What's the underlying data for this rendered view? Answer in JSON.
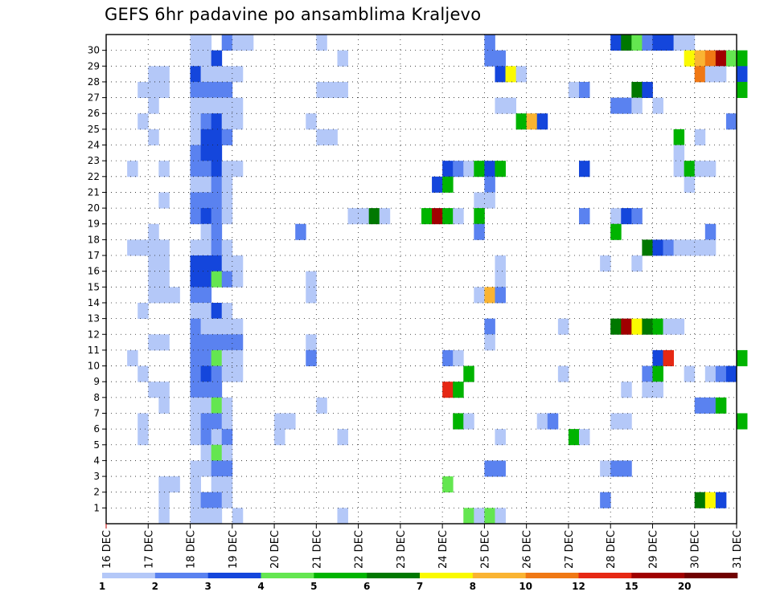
{
  "chart_data": {
    "type": "heatmap",
    "title": "GEFS 6hr padavine po ansamblima Kraljevo",
    "y_ticks": [
      "1",
      "2",
      "3",
      "4",
      "5",
      "6",
      "7",
      "8",
      "9",
      "10",
      "11",
      "12",
      "13",
      "14",
      "15",
      "16",
      "17",
      "18",
      "19",
      "20",
      "21",
      "22",
      "23",
      "24",
      "25",
      "26",
      "27",
      "28",
      "29",
      "30"
    ],
    "x_ticks": [
      "16 DEC",
      "17 DEC",
      "18 DEC",
      "19 DEC",
      "20 DEC",
      "21 DEC",
      "22 DEC",
      "23 DEC",
      "24 DEC",
      "25 DEC",
      "26 DEC",
      "27 DEC",
      "28 DEC",
      "29 DEC",
      "30 DEC",
      "31 DEC"
    ],
    "grid": true,
    "legend": {
      "placement": "bottom",
      "labels": [
        "1",
        "2",
        "3",
        "4",
        "5",
        "6",
        "7",
        "8",
        "10",
        "12",
        "15",
        "20"
      ],
      "colors": [
        "#b4c8f8",
        "#5a82f0",
        "#1446dc",
        "#64e650",
        "#00b400",
        "#007800",
        "#fafa00",
        "#fab432",
        "#f07814",
        "#e62814",
        "#a00000",
        "#700000"
      ]
    },
    "cells": [
      [
        30,
        "18 00",
        1
      ],
      [
        30,
        "18 06",
        1
      ],
      [
        30,
        "18 18",
        2
      ],
      [
        30,
        "19 00",
        1
      ],
      [
        30,
        "19 06",
        1
      ],
      [
        30,
        "21 00",
        1
      ],
      [
        30,
        "25 00",
        2
      ],
      [
        30,
        "28 00",
        3
      ],
      [
        30,
        "28 06",
        6
      ],
      [
        30,
        "28 12",
        4
      ],
      [
        30,
        "28 18",
        2
      ],
      [
        30,
        "29 00",
        3
      ],
      [
        30,
        "29 06",
        3
      ],
      [
        30,
        "29 12",
        1
      ],
      [
        30,
        "29 18",
        1
      ],
      [
        29,
        "18 00",
        1
      ],
      [
        29,
        "18 06",
        1
      ],
      [
        29,
        "18 12",
        3
      ],
      [
        29,
        "21 12",
        1
      ],
      [
        29,
        "25 00",
        2
      ],
      [
        29,
        "25 06",
        2
      ],
      [
        29,
        "29 18",
        7
      ],
      [
        29,
        "30 00",
        8
      ],
      [
        29,
        "30 06",
        10
      ],
      [
        29,
        "30 12",
        15
      ],
      [
        29,
        "30 18",
        4
      ],
      [
        29,
        "31 00",
        5
      ],
      [
        28,
        "17 00",
        1
      ],
      [
        28,
        "17 06",
        1
      ],
      [
        28,
        "18 00",
        3
      ],
      [
        28,
        "18 06",
        1
      ],
      [
        28,
        "18 12",
        1
      ],
      [
        28,
        "18 18",
        1
      ],
      [
        28,
        "19 00",
        1
      ],
      [
        28,
        "25 06",
        3
      ],
      [
        28,
        "25 12",
        7
      ],
      [
        28,
        "25 18",
        1
      ],
      [
        28,
        "30 00",
        10
      ],
      [
        28,
        "30 06",
        1
      ],
      [
        28,
        "30 12",
        1
      ],
      [
        28,
        "31 00",
        3
      ],
      [
        27,
        "16 18",
        1
      ],
      [
        27,
        "17 00",
        1
      ],
      [
        27,
        "17 06",
        1
      ],
      [
        27,
        "18 00",
        2
      ],
      [
        27,
        "18 06",
        2
      ],
      [
        27,
        "18 12",
        2
      ],
      [
        27,
        "18 18",
        2
      ],
      [
        27,
        "21 00",
        1
      ],
      [
        27,
        "21 06",
        1
      ],
      [
        27,
        "21 12",
        1
      ],
      [
        27,
        "27 00",
        1
      ],
      [
        27,
        "27 06",
        2
      ],
      [
        27,
        "28 12",
        6
      ],
      [
        27,
        "28 18",
        3
      ],
      [
        27,
        "31 00",
        5
      ],
      [
        26,
        "17 00",
        1
      ],
      [
        26,
        "18 00",
        1
      ],
      [
        26,
        "18 06",
        1
      ],
      [
        26,
        "18 12",
        1
      ],
      [
        26,
        "18 18",
        1
      ],
      [
        26,
        "19 00",
        1
      ],
      [
        26,
        "25 06",
        1
      ],
      [
        26,
        "25 12",
        1
      ],
      [
        26,
        "28 00",
        2
      ],
      [
        26,
        "28 06",
        2
      ],
      [
        26,
        "28 12",
        1
      ],
      [
        26,
        "29 00",
        1
      ],
      [
        25,
        "16 18",
        1
      ],
      [
        25,
        "18 00",
        1
      ],
      [
        25,
        "18 06",
        2
      ],
      [
        25,
        "18 12",
        3
      ],
      [
        25,
        "18 18",
        1
      ],
      [
        25,
        "19 00",
        1
      ],
      [
        25,
        "20 18",
        1
      ],
      [
        25,
        "25 18",
        5
      ],
      [
        25,
        "26 00",
        8
      ],
      [
        25,
        "26 06",
        3
      ],
      [
        25,
        "30 18",
        2
      ],
      [
        24,
        "17 00",
        1
      ],
      [
        24,
        "18 00",
        1
      ],
      [
        24,
        "18 06",
        3
      ],
      [
        24,
        "18 12",
        3
      ],
      [
        24,
        "18 18",
        2
      ],
      [
        24,
        "21 00",
        1
      ],
      [
        24,
        "21 06",
        1
      ],
      [
        24,
        "29 12",
        5
      ],
      [
        24,
        "30 00",
        1
      ],
      [
        23,
        "18 00",
        2
      ],
      [
        23,
        "18 06",
        3
      ],
      [
        23,
        "18 12",
        3
      ],
      [
        23,
        "29 12",
        1
      ],
      [
        22,
        "16 12",
        1
      ],
      [
        22,
        "17 06",
        1
      ],
      [
        22,
        "18 00",
        2
      ],
      [
        22,
        "18 06",
        2
      ],
      [
        22,
        "18 12",
        3
      ],
      [
        22,
        "18 18",
        1
      ],
      [
        22,
        "19 00",
        1
      ],
      [
        22,
        "24 00",
        3
      ],
      [
        22,
        "24 06",
        2
      ],
      [
        22,
        "24 12",
        1
      ],
      [
        22,
        "24 18",
        5
      ],
      [
        22,
        "25 00",
        3
      ],
      [
        22,
        "25 06",
        5
      ],
      [
        22,
        "27 06",
        3
      ],
      [
        22,
        "29 12",
        1
      ],
      [
        22,
        "29 18",
        5
      ],
      [
        22,
        "30 00",
        1
      ],
      [
        22,
        "30 06",
        1
      ],
      [
        21,
        "18 00",
        1
      ],
      [
        21,
        "18 06",
        1
      ],
      [
        21,
        "18 12",
        2
      ],
      [
        21,
        "18 18",
        1
      ],
      [
        21,
        "23 18",
        3
      ],
      [
        21,
        "24 00",
        5
      ],
      [
        21,
        "25 00",
        2
      ],
      [
        21,
        "29 18",
        1
      ],
      [
        20,
        "17 06",
        1
      ],
      [
        20,
        "18 00",
        2
      ],
      [
        20,
        "18 06",
        2
      ],
      [
        20,
        "18 12",
        2
      ],
      [
        20,
        "18 18",
        1
      ],
      [
        20,
        "24 18",
        1
      ],
      [
        20,
        "25 00",
        1
      ],
      [
        19,
        "18 00",
        2
      ],
      [
        19,
        "18 06",
        3
      ],
      [
        19,
        "18 12",
        2
      ],
      [
        19,
        "18 18",
        1
      ],
      [
        19,
        "21 18",
        1
      ],
      [
        19,
        "22 00",
        1
      ],
      [
        19,
        "22 06",
        6
      ],
      [
        19,
        "22 12",
        1
      ],
      [
        19,
        "23 12",
        5
      ],
      [
        19,
        "23 18",
        15
      ],
      [
        19,
        "24 00",
        5
      ],
      [
        19,
        "24 06",
        1
      ],
      [
        19,
        "24 18",
        5
      ],
      [
        19,
        "27 06",
        2
      ],
      [
        19,
        "28 00",
        1
      ],
      [
        19,
        "28 06",
        3
      ],
      [
        19,
        "28 12",
        2
      ],
      [
        18,
        "17 00",
        1
      ],
      [
        18,
        "18 06",
        1
      ],
      [
        18,
        "18 12",
        2
      ],
      [
        18,
        "20 12",
        2
      ],
      [
        18,
        "24 18",
        2
      ],
      [
        18,
        "28 00",
        5
      ],
      [
        18,
        "30 06",
        2
      ],
      [
        17,
        "16 12",
        1
      ],
      [
        17,
        "16 18",
        1
      ],
      [
        17,
        "17 00",
        1
      ],
      [
        17,
        "17 06",
        1
      ],
      [
        17,
        "18 00",
        1
      ],
      [
        17,
        "18 06",
        1
      ],
      [
        17,
        "18 12",
        2
      ],
      [
        17,
        "18 18",
        1
      ],
      [
        17,
        "28 18",
        6
      ],
      [
        17,
        "29 00",
        3
      ],
      [
        17,
        "29 06",
        2
      ],
      [
        17,
        "29 12",
        1
      ],
      [
        17,
        "29 18",
        1
      ],
      [
        17,
        "30 00",
        1
      ],
      [
        17,
        "30 06",
        1
      ],
      [
        16,
        "17 00",
        1
      ],
      [
        16,
        "17 06",
        1
      ],
      [
        16,
        "18 00",
        3
      ],
      [
        16,
        "18 06",
        3
      ],
      [
        16,
        "18 12",
        3
      ],
      [
        16,
        "18 18",
        1
      ],
      [
        16,
        "19 00",
        1
      ],
      [
        16,
        "25 06",
        1
      ],
      [
        16,
        "27 18",
        1
      ],
      [
        16,
        "28 12",
        1
      ],
      [
        15,
        "17 00",
        1
      ],
      [
        15,
        "17 06",
        1
      ],
      [
        15,
        "18 00",
        3
      ],
      [
        15,
        "18 06",
        3
      ],
      [
        15,
        "18 12",
        4
      ],
      [
        15,
        "18 18",
        2
      ],
      [
        15,
        "19 00",
        1
      ],
      [
        15,
        "20 18",
        1
      ],
      [
        15,
        "25 06",
        1
      ],
      [
        14,
        "17 00",
        1
      ],
      [
        14,
        "17 06",
        1
      ],
      [
        14,
        "17 12",
        1
      ],
      [
        14,
        "18 00",
        2
      ],
      [
        14,
        "18 06",
        2
      ],
      [
        14,
        "20 18",
        1
      ],
      [
        14,
        "24 18",
        1
      ],
      [
        14,
        "25 00",
        8
      ],
      [
        14,
        "25 06",
        2
      ],
      [
        13,
        "16 18",
        1
      ],
      [
        13,
        "18 00",
        1
      ],
      [
        13,
        "18 06",
        1
      ],
      [
        13,
        "18 12",
        3
      ],
      [
        13,
        "18 18",
        1
      ],
      [
        12,
        "18 00",
        2
      ],
      [
        12,
        "18 06",
        1
      ],
      [
        12,
        "18 12",
        1
      ],
      [
        12,
        "18 18",
        1
      ],
      [
        12,
        "19 00",
        1
      ],
      [
        12,
        "25 00",
        2
      ],
      [
        12,
        "26 18",
        1
      ],
      [
        12,
        "28 00",
        6
      ],
      [
        12,
        "28 06",
        15
      ],
      [
        12,
        "28 12",
        7
      ],
      [
        12,
        "28 18",
        6
      ],
      [
        12,
        "29 00",
        5
      ],
      [
        12,
        "29 06",
        1
      ],
      [
        12,
        "29 12",
        1
      ],
      [
        11,
        "17 00",
        1
      ],
      [
        11,
        "17 06",
        1
      ],
      [
        11,
        "18 00",
        2
      ],
      [
        11,
        "18 06",
        2
      ],
      [
        11,
        "18 12",
        2
      ],
      [
        11,
        "18 18",
        2
      ],
      [
        11,
        "19 00",
        2
      ],
      [
        11,
        "20 18",
        1
      ],
      [
        11,
        "25 00",
        1
      ],
      [
        10,
        "16 12",
        1
      ],
      [
        10,
        "18 00",
        2
      ],
      [
        10,
        "18 06",
        2
      ],
      [
        10,
        "18 12",
        4
      ],
      [
        10,
        "18 18",
        1
      ],
      [
        10,
        "19 00",
        1
      ],
      [
        10,
        "20 18",
        2
      ],
      [
        10,
        "24 00",
        2
      ],
      [
        10,
        "24 06",
        1
      ],
      [
        10,
        "29 00",
        3
      ],
      [
        10,
        "29 06",
        12
      ],
      [
        10,
        "31 00",
        5
      ],
      [
        9,
        "16 18",
        1
      ],
      [
        9,
        "18 00",
        2
      ],
      [
        9,
        "18 06",
        3
      ],
      [
        9,
        "18 12",
        2
      ],
      [
        9,
        "18 18",
        1
      ],
      [
        9,
        "19 00",
        1
      ],
      [
        9,
        "24 12",
        5
      ],
      [
        9,
        "26 18",
        1
      ],
      [
        9,
        "28 18",
        2
      ],
      [
        9,
        "29 00",
        5
      ],
      [
        9,
        "29 18",
        1
      ],
      [
        9,
        "30 06",
        1
      ],
      [
        9,
        "30 12",
        2
      ],
      [
        9,
        "30 18",
        3
      ],
      [
        8,
        "17 00",
        1
      ],
      [
        8,
        "17 06",
        1
      ],
      [
        8,
        "18 00",
        2
      ],
      [
        8,
        "18 06",
        2
      ],
      [
        8,
        "18 12",
        2
      ],
      [
        8,
        "24 00",
        12
      ],
      [
        8,
        "24 06",
        5
      ],
      [
        8,
        "28 06",
        1
      ],
      [
        8,
        "28 18",
        1
      ],
      [
        8,
        "29 00",
        1
      ],
      [
        7,
        "17 06",
        1
      ],
      [
        7,
        "18 00",
        1
      ],
      [
        7,
        "18 06",
        1
      ],
      [
        7,
        "18 12",
        4
      ],
      [
        7,
        "18 18",
        1
      ],
      [
        7,
        "21 00",
        1
      ],
      [
        7,
        "30 00",
        2
      ],
      [
        7,
        "30 06",
        2
      ],
      [
        7,
        "30 12",
        5
      ],
      [
        6,
        "16 18",
        1
      ],
      [
        6,
        "18 00",
        1
      ],
      [
        6,
        "18 06",
        2
      ],
      [
        6,
        "18 12",
        2
      ],
      [
        6,
        "18 18",
        1
      ],
      [
        6,
        "20 00",
        1
      ],
      [
        6,
        "20 06",
        1
      ],
      [
        6,
        "24 06",
        5
      ],
      [
        6,
        "24 12",
        1
      ],
      [
        6,
        "26 06",
        1
      ],
      [
        6,
        "26 12",
        2
      ],
      [
        6,
        "28 00",
        1
      ],
      [
        6,
        "28 06",
        1
      ],
      [
        6,
        "31 00",
        5
      ],
      [
        5,
        "16 18",
        1
      ],
      [
        5,
        "18 00",
        1
      ],
      [
        5,
        "18 06",
        2
      ],
      [
        5,
        "18 12",
        1
      ],
      [
        5,
        "18 18",
        2
      ],
      [
        5,
        "20 00",
        1
      ],
      [
        5,
        "21 12",
        1
      ],
      [
        5,
        "25 06",
        1
      ],
      [
        5,
        "27 00",
        5
      ],
      [
        5,
        "27 06",
        1
      ],
      [
        4,
        "18 06",
        1
      ],
      [
        4,
        "18 12",
        4
      ],
      [
        4,
        "18 18",
        1
      ],
      [
        3,
        "18 00",
        1
      ],
      [
        3,
        "18 06",
        1
      ],
      [
        3,
        "18 12",
        2
      ],
      [
        3,
        "18 18",
        2
      ],
      [
        3,
        "25 00",
        2
      ],
      [
        3,
        "25 06",
        2
      ],
      [
        3,
        "27 18",
        1
      ],
      [
        3,
        "28 00",
        2
      ],
      [
        3,
        "28 06",
        2
      ],
      [
        2,
        "17 06",
        1
      ],
      [
        2,
        "17 12",
        1
      ],
      [
        2,
        "18 00",
        1
      ],
      [
        2,
        "18 12",
        1
      ],
      [
        2,
        "18 18",
        1
      ],
      [
        2,
        "24 00",
        4
      ],
      [
        1,
        "17 06",
        1
      ],
      [
        1,
        "18 00",
        1
      ],
      [
        1,
        "18 06",
        2
      ],
      [
        1,
        "18 12",
        2
      ],
      [
        1,
        "18 18",
        1
      ],
      [
        1,
        "27 18",
        2
      ],
      [
        1,
        "30 00",
        6
      ],
      [
        1,
        "30 06",
        7
      ],
      [
        1,
        "30 12",
        3
      ],
      [
        0,
        "17 06",
        1
      ],
      [
        0,
        "18 00",
        1
      ],
      [
        0,
        "18 06",
        1
      ],
      [
        0,
        "18 12",
        1
      ],
      [
        0,
        "19 00",
        1
      ],
      [
        0,
        "21 12",
        1
      ],
      [
        0,
        "24 12",
        4
      ],
      [
        0,
        "24 18",
        1
      ],
      [
        0,
        "25 00",
        4
      ],
      [
        0,
        "25 06",
        1
      ]
    ]
  }
}
